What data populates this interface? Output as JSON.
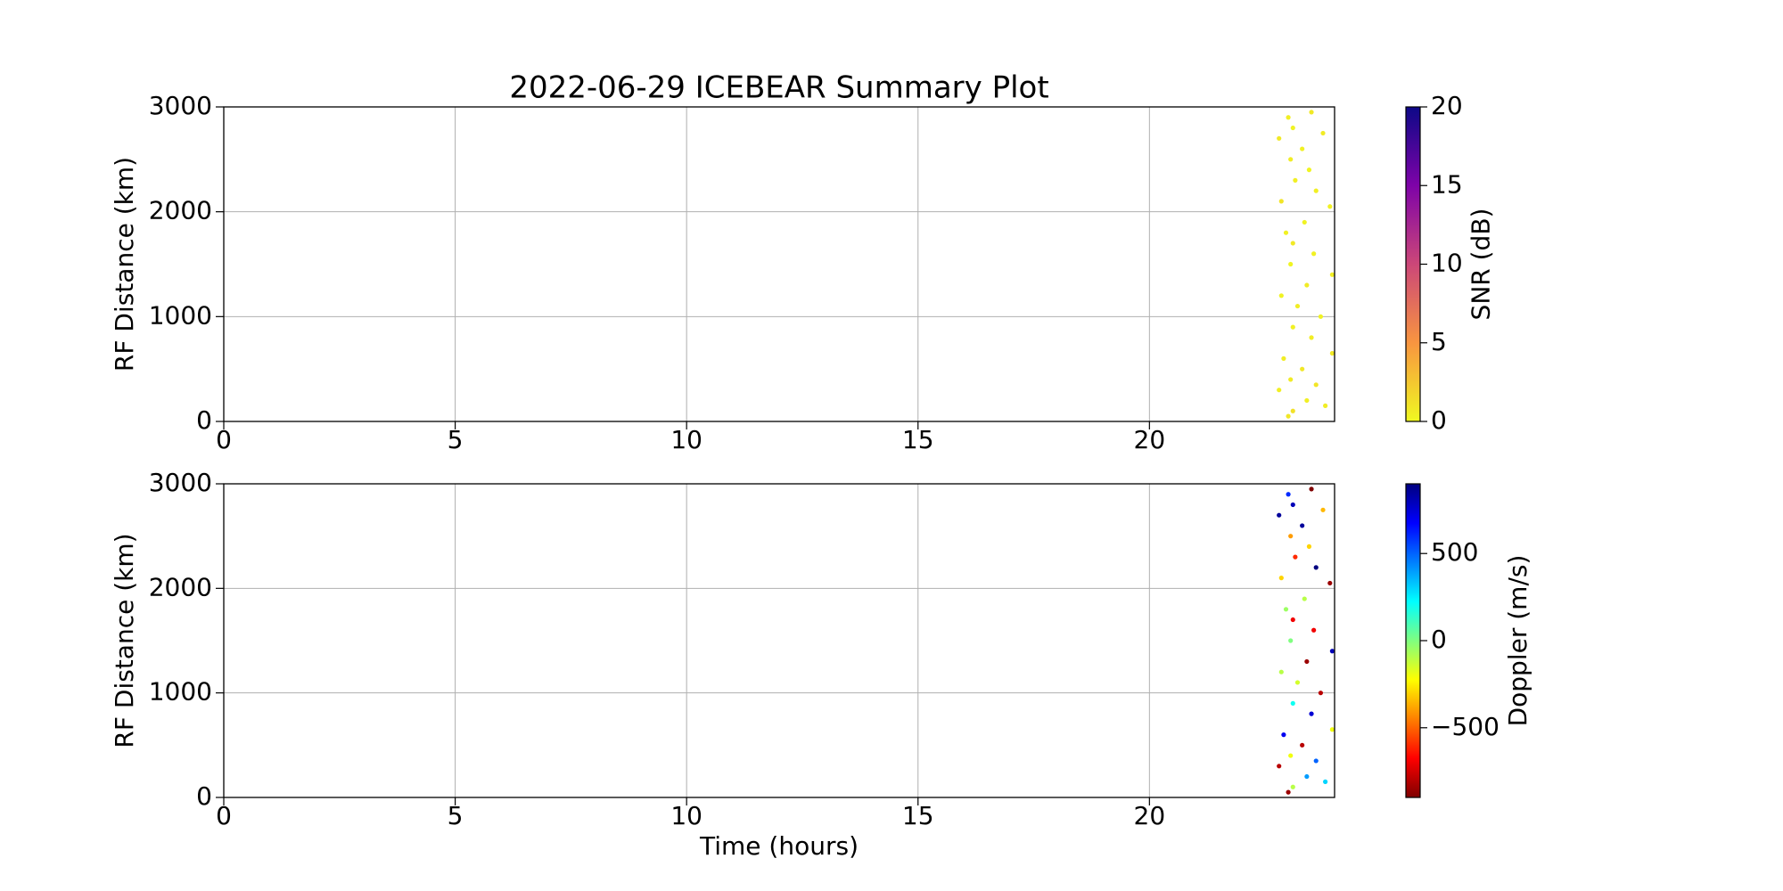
{
  "chart_data": [
    {
      "type": "scatter",
      "title": "2022-06-29 ICEBEAR Summary Plot",
      "ylabel": "RF Distance (km)",
      "x": [
        22.8,
        22.8,
        22.85,
        22.85,
        22.9,
        22.95,
        23.0,
        23.0,
        23.05,
        23.05,
        23.05,
        23.1,
        23.1,
        23.1,
        23.1,
        23.15,
        23.2,
        23.3,
        23.3,
        23.35,
        23.4,
        23.4,
        23.45,
        23.5,
        23.5,
        23.55,
        23.6,
        23.6,
        23.7,
        23.75,
        23.8,
        23.9,
        23.95,
        23.95
      ],
      "values": [
        300,
        2700,
        1200,
        2100,
        600,
        1800,
        50,
        2900,
        400,
        1500,
        2500,
        100,
        900,
        1700,
        2800,
        2300,
        1100,
        2600,
        500,
        1900,
        1300,
        200,
        2400,
        800,
        2950,
        1600,
        350,
        2200,
        1000,
        2750,
        150,
        2050,
        1400,
        650
      ],
      "color_values": [
        0.5,
        0.8,
        0.3,
        1.0,
        0.6,
        0.4,
        0.9,
        0.5,
        0.7,
        0.2,
        0.6,
        1.2,
        0.4,
        0.8,
        0.3,
        0.5,
        0.6,
        0.4,
        0.9,
        0.3,
        0.7,
        0.5,
        0.2,
        0.6,
        0.8,
        0.4,
        1.0,
        0.5,
        0.3,
        0.7,
        0.6,
        0.4,
        0.5,
        0.8
      ],
      "colormap": "plasma_r",
      "colorbar_label": "SNR (dB)",
      "clim": [
        0,
        20
      ],
      "cticks": [
        0,
        5,
        10,
        15,
        20
      ],
      "xlim": [
        0,
        24
      ],
      "xticks": [
        0,
        5,
        10,
        15,
        20
      ],
      "ylim": [
        0,
        3000
      ],
      "yticks": [
        0,
        1000,
        2000,
        3000
      ],
      "grid": true
    },
    {
      "type": "scatter",
      "xlabel": "Time (hours)",
      "ylabel": "RF Distance (km)",
      "x": [
        22.8,
        22.8,
        22.85,
        22.85,
        22.9,
        22.95,
        23.0,
        23.0,
        23.05,
        23.05,
        23.05,
        23.1,
        23.1,
        23.1,
        23.1,
        23.15,
        23.2,
        23.3,
        23.3,
        23.35,
        23.4,
        23.4,
        23.45,
        23.5,
        23.5,
        23.55,
        23.6,
        23.6,
        23.7,
        23.75,
        23.8,
        23.9,
        23.95,
        23.95
      ],
      "values": [
        300,
        2700,
        1200,
        2100,
        600,
        1800,
        50,
        2900,
        400,
        1500,
        2500,
        100,
        900,
        1700,
        2800,
        2300,
        1100,
        2600,
        500,
        1900,
        1300,
        200,
        2400,
        800,
        2950,
        1600,
        350,
        2200,
        1000,
        2750,
        150,
        2050,
        1400,
        650
      ],
      "color_values": [
        -800,
        850,
        -100,
        -300,
        700,
        -50,
        -850,
        600,
        -200,
        0,
        -400,
        -100,
        200,
        -700,
        800,
        -600,
        -150,
        850,
        -800,
        -100,
        -850,
        400,
        -300,
        750,
        -900,
        -700,
        500,
        900,
        -800,
        -350,
        300,
        -850,
        800,
        -200
      ],
      "colormap": "jet_r",
      "colorbar_label": "Doppler (m/s)",
      "clim": [
        -900,
        900
      ],
      "cticks": [
        {
          "value": -500,
          "label": "−500"
        },
        0,
        500
      ],
      "xlim": [
        0,
        24
      ],
      "xticks": [
        0,
        5,
        10,
        15,
        20
      ],
      "ylim": [
        0,
        3000
      ],
      "yticks": [
        0,
        1000,
        2000,
        3000
      ],
      "grid": true
    }
  ]
}
